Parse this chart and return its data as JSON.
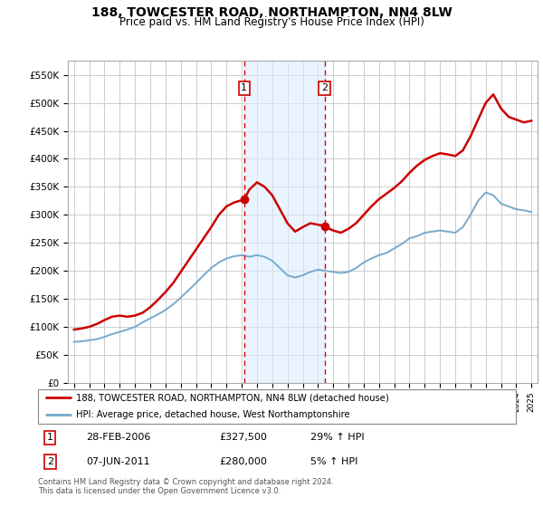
{
  "title": "188, TOWCESTER ROAD, NORTHAMPTON, NN4 8LW",
  "subtitle": "Price paid vs. HM Land Registry's House Price Index (HPI)",
  "title_fontsize": 10,
  "subtitle_fontsize": 8.5,
  "background_color": "#ffffff",
  "plot_bg_color": "#ffffff",
  "grid_color": "#cccccc",
  "ylim": [
    0,
    575000
  ],
  "yticks": [
    0,
    50000,
    100000,
    150000,
    200000,
    250000,
    300000,
    350000,
    400000,
    450000,
    500000,
    550000
  ],
  "ytick_labels": [
    "£0",
    "£50K",
    "£100K",
    "£150K",
    "£200K",
    "£250K",
    "£300K",
    "£350K",
    "£400K",
    "£450K",
    "£500K",
    "£550K"
  ],
  "transaction1": {
    "date_label": "28-FEB-2006",
    "price": 327500,
    "year": 2006.16,
    "label": "29% ↑ HPI"
  },
  "transaction2": {
    "date_label": "07-JUN-2011",
    "price": 280000,
    "year": 2011.44,
    "label": "5% ↑ HPI"
  },
  "shade_color": "#ddeeff",
  "shade_alpha": 0.6,
  "dashed_line_color": "#dd0000",
  "red_line_color": "#cc0000",
  "blue_line_color": "#77aacc",
  "legend_entries": [
    "188, TOWCESTER ROAD, NORTHAMPTON, NN4 8LW (detached house)",
    "HPI: Average price, detached house, West Northamptonshire"
  ],
  "footer_text": "Contains HM Land Registry data © Crown copyright and database right 2024.\nThis data is licensed under the Open Government Licence v3.0.",
  "hpi_x": [
    1995.0,
    1995.5,
    1996.0,
    1996.5,
    1997.0,
    1997.5,
    1998.0,
    1998.5,
    1999.0,
    1999.5,
    2000.0,
    2000.5,
    2001.0,
    2001.5,
    2002.0,
    2002.5,
    2003.0,
    2003.5,
    2004.0,
    2004.5,
    2005.0,
    2005.5,
    2006.0,
    2006.5,
    2007.0,
    2007.5,
    2008.0,
    2008.5,
    2009.0,
    2009.5,
    2010.0,
    2010.5,
    2011.0,
    2011.5,
    2012.0,
    2012.5,
    2013.0,
    2013.5,
    2014.0,
    2014.5,
    2015.0,
    2015.5,
    2016.0,
    2016.5,
    2017.0,
    2017.5,
    2018.0,
    2018.5,
    2019.0,
    2019.5,
    2020.0,
    2020.5,
    2021.0,
    2021.5,
    2022.0,
    2022.5,
    2023.0,
    2023.5,
    2024.0,
    2024.5,
    2025.0
  ],
  "hpi_y": [
    73000,
    74000,
    76000,
    78000,
    82000,
    87000,
    91000,
    95000,
    100000,
    108000,
    115000,
    122000,
    130000,
    140000,
    152000,
    165000,
    178000,
    192000,
    205000,
    215000,
    222000,
    226000,
    228000,
    225000,
    228000,
    225000,
    218000,
    205000,
    192000,
    188000,
    192000,
    198000,
    202000,
    200000,
    198000,
    196000,
    198000,
    205000,
    215000,
    222000,
    228000,
    232000,
    240000,
    248000,
    258000,
    262000,
    268000,
    270000,
    272000,
    270000,
    268000,
    278000,
    300000,
    325000,
    340000,
    335000,
    320000,
    315000,
    310000,
    308000,
    305000
  ],
  "red_x": [
    1995.0,
    1995.5,
    1996.0,
    1996.5,
    1997.0,
    1997.5,
    1998.0,
    1998.5,
    1999.0,
    1999.5,
    2000.0,
    2000.5,
    2001.0,
    2001.5,
    2002.0,
    2002.5,
    2003.0,
    2003.5,
    2004.0,
    2004.5,
    2005.0,
    2005.5,
    2006.16,
    2006.5,
    2007.0,
    2007.5,
    2008.0,
    2008.5,
    2009.0,
    2009.5,
    2010.0,
    2010.5,
    2011.44,
    2011.5,
    2012.0,
    2012.5,
    2013.0,
    2013.5,
    2014.0,
    2014.5,
    2015.0,
    2015.5,
    2016.0,
    2016.5,
    2017.0,
    2017.5,
    2018.0,
    2018.5,
    2019.0,
    2019.5,
    2020.0,
    2020.5,
    2021.0,
    2021.5,
    2022.0,
    2022.5,
    2023.0,
    2023.5,
    2024.0,
    2024.5,
    2025.0
  ],
  "red_y": [
    95000,
    97000,
    100000,
    105000,
    112000,
    118000,
    120000,
    118000,
    120000,
    125000,
    135000,
    148000,
    162000,
    178000,
    198000,
    218000,
    238000,
    258000,
    278000,
    300000,
    315000,
    322000,
    327500,
    345000,
    358000,
    350000,
    335000,
    310000,
    285000,
    270000,
    278000,
    285000,
    280000,
    278000,
    272000,
    268000,
    275000,
    285000,
    300000,
    315000,
    328000,
    338000,
    348000,
    360000,
    375000,
    388000,
    398000,
    405000,
    410000,
    408000,
    405000,
    415000,
    440000,
    470000,
    500000,
    515000,
    490000,
    475000,
    470000,
    465000,
    468000
  ]
}
